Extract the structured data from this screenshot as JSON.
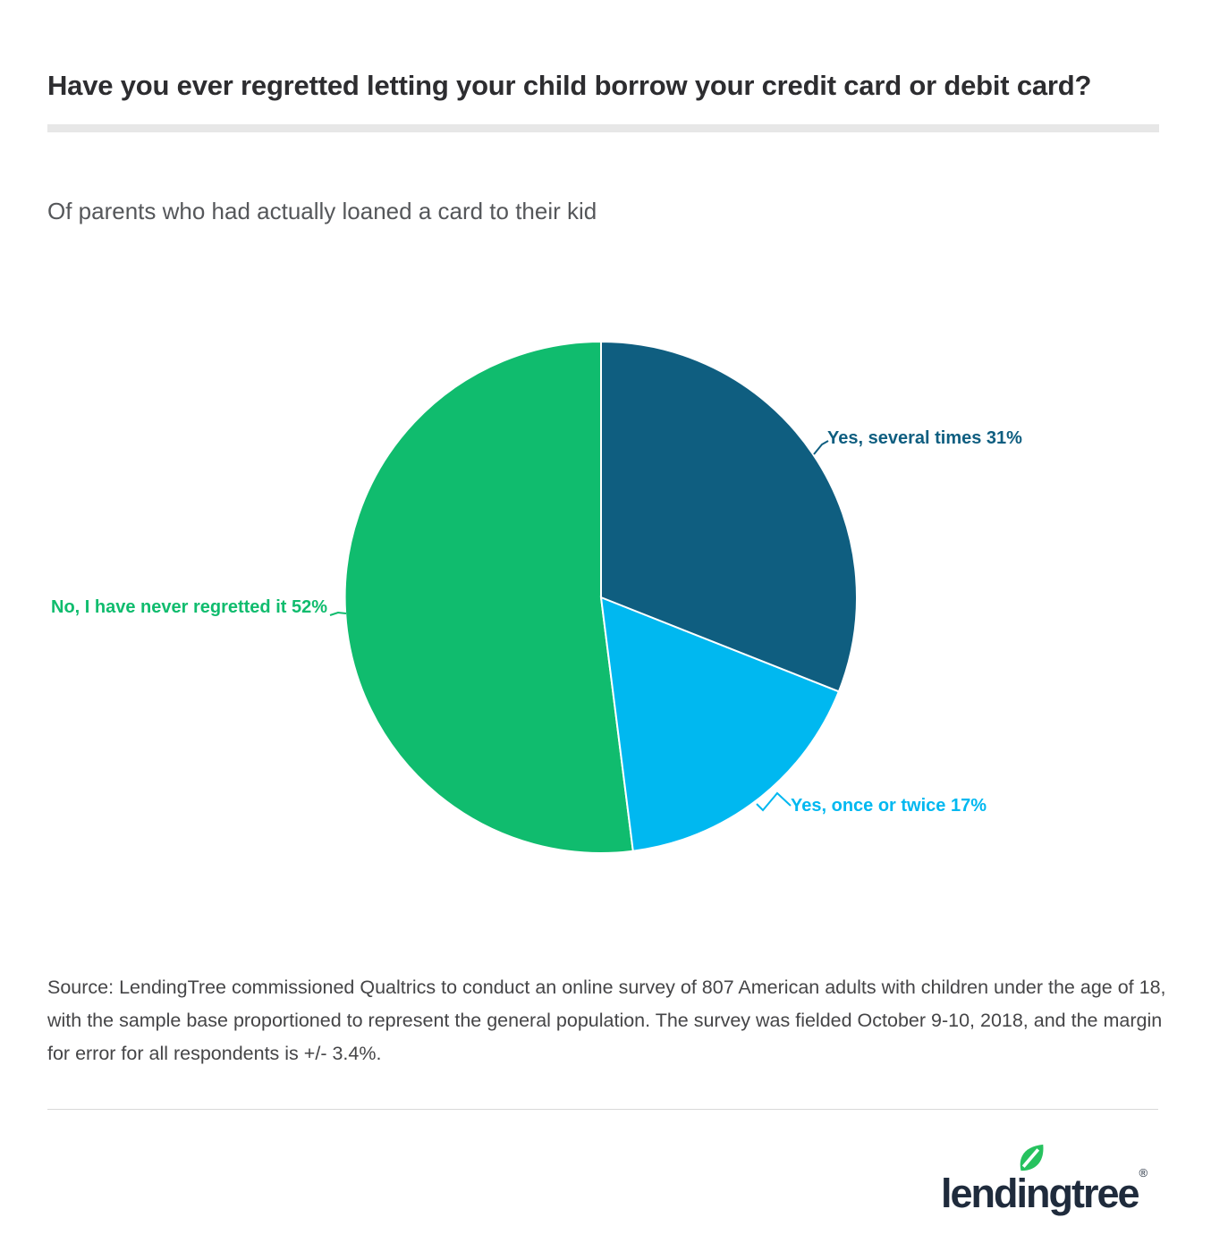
{
  "chart_data": {
    "type": "pie",
    "title": "Have you ever regretted letting your child borrow your credit card or debit card?",
    "subtitle": "Of parents who had actually loaned a card to their kid",
    "start_angle_deg": 0,
    "direction": "clockwise",
    "legend_position": "none (direct slice labels with leader lines)",
    "slices": [
      {
        "label": "Yes, several times",
        "value": 31,
        "display": "Yes, several times 31%",
        "color": "#0f5e80"
      },
      {
        "label": "Yes, once or twice",
        "value": 17,
        "display": "Yes, once or twice 17%",
        "color": "#00b8f0"
      },
      {
        "label": "No, I have never regretted it",
        "value": 52,
        "display": "No, I have never regretted it 52%",
        "color": "#10bc6e"
      }
    ]
  },
  "source": {
    "text": "Source: LendingTree commissioned Qualtrics to conduct an online survey of 807 American adults with children under the age of 18, with the sample base proportioned to represent the general population. The survey was fielded October 9-10, 2018, and the margin for error for all respondents is +/- 3.4%."
  },
  "footer": {
    "logo_text": "lendingtree",
    "registered_mark": "®",
    "logo_color": "#1f2b3c",
    "leaf_color": "#27c25f"
  }
}
